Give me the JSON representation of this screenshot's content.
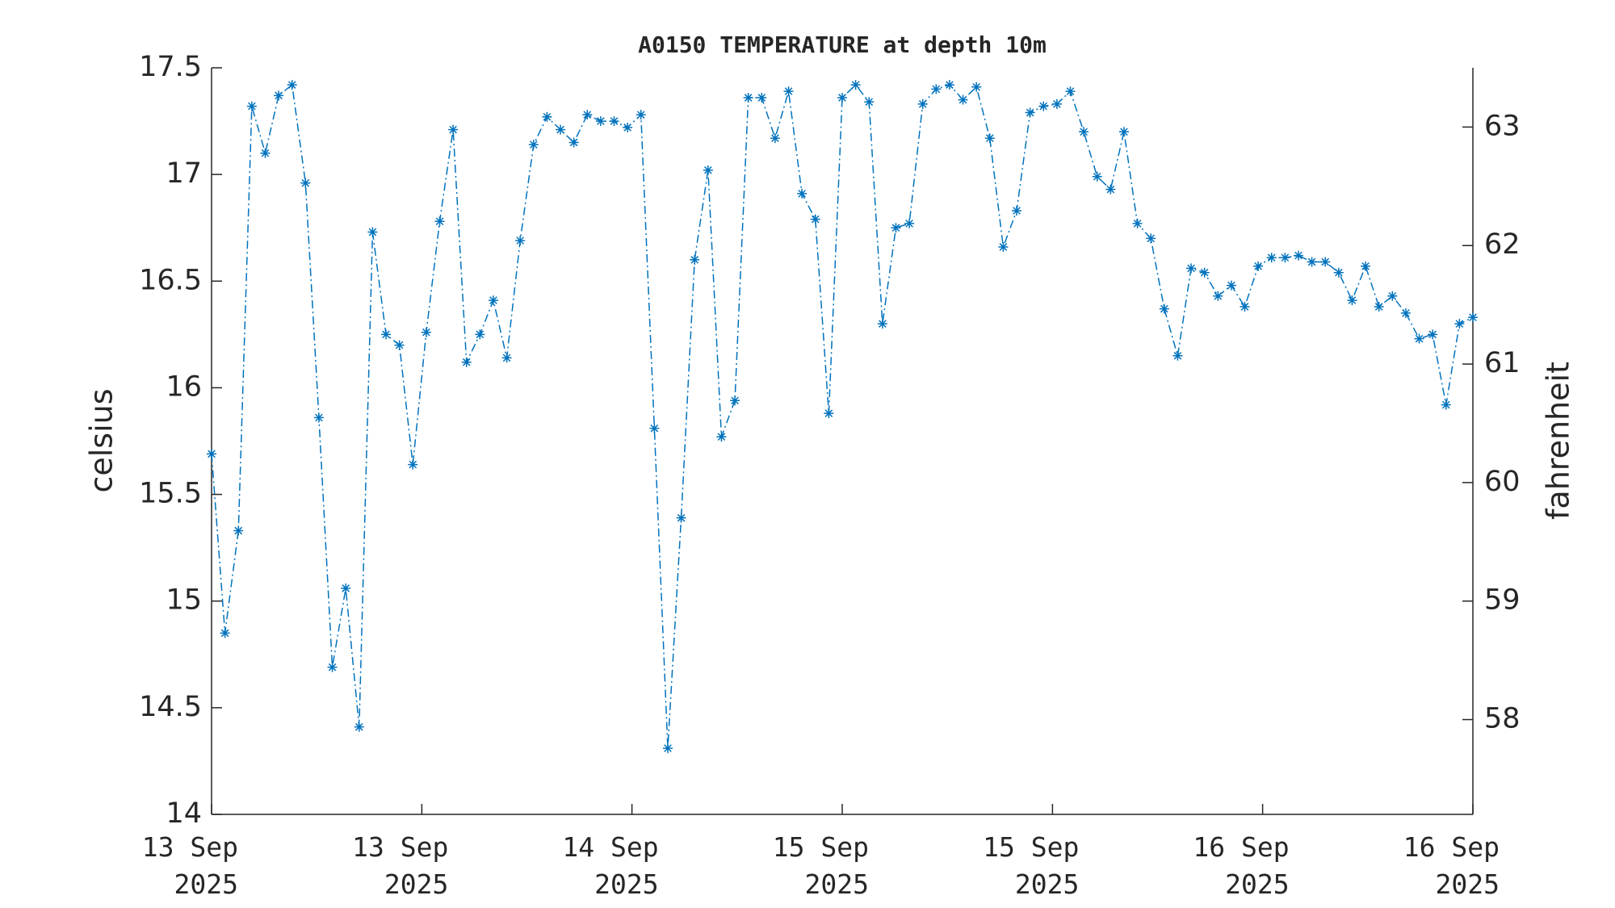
{
  "chart_data": {
    "type": "line",
    "title": "A0150 TEMPERATURE at depth 10m",
    "ylabel": "celsius",
    "y2label": "fahrenheit",
    "x": [
      0,
      1,
      2,
      3,
      4,
      5,
      6,
      7,
      8,
      9,
      10,
      11,
      12,
      13,
      14,
      15,
      16,
      17,
      18,
      19,
      20,
      21,
      22,
      23,
      24,
      25,
      26,
      27,
      28,
      29,
      30,
      31,
      32,
      33,
      34,
      35,
      36,
      37,
      38,
      39,
      40,
      41,
      42,
      43,
      44,
      45,
      46,
      47,
      48,
      49,
      50,
      51,
      52,
      53,
      54,
      55,
      56,
      57,
      58,
      59,
      60,
      61,
      62,
      63,
      64,
      65,
      66,
      67,
      68,
      69,
      70,
      71,
      72,
      73,
      74,
      75,
      76,
      77,
      78,
      79,
      80,
      81,
      82,
      83,
      84,
      85,
      86,
      87,
      88,
      89,
      90,
      91,
      92,
      93,
      94
    ],
    "series": [
      {
        "name": "temperature",
        "color": "#0072bd",
        "values": [
          15.69,
          14.85,
          15.33,
          17.32,
          17.1,
          17.37,
          17.42,
          16.96,
          15.86,
          14.69,
          15.06,
          14.41,
          16.73,
          16.25,
          16.2,
          15.64,
          16.26,
          16.78,
          17.21,
          16.12,
          16.25,
          16.41,
          16.14,
          16.69,
          17.14,
          17.27,
          17.21,
          17.15,
          17.28,
          17.25,
          17.25,
          17.22,
          17.28,
          15.81,
          14.31,
          15.39,
          16.6,
          17.02,
          15.77,
          15.94,
          17.36,
          17.36,
          17.17,
          17.39,
          16.91,
          16.79,
          15.88,
          17.36,
          17.42,
          17.34,
          16.3,
          16.75,
          16.77,
          17.33,
          17.4,
          17.42,
          17.35,
          17.41,
          17.17,
          16.66,
          16.83,
          17.29,
          17.32,
          17.33,
          17.39,
          17.2,
          16.99,
          16.93,
          17.2,
          16.77,
          16.7,
          16.37,
          16.15,
          16.56,
          16.54,
          16.43,
          16.48,
          16.38,
          16.57,
          16.61,
          16.61,
          16.62,
          16.59,
          16.59,
          16.54,
          16.41,
          16.57,
          16.38,
          16.43,
          16.35,
          16.23,
          16.25,
          15.92,
          16.3,
          16.33
        ]
      }
    ],
    "xlim": [
      0,
      94
    ],
    "xticks": [
      {
        "value": 0,
        "label": "13 Sep\n2025"
      },
      {
        "value": 15.67,
        "label": "13 Sep\n2025"
      },
      {
        "value": 31.33,
        "label": "14 Sep\n2025"
      },
      {
        "value": 47,
        "label": "15 Sep\n2025"
      },
      {
        "value": 62.67,
        "label": "15 Sep\n2025"
      },
      {
        "value": 78.33,
        "label": "16 Sep\n2025"
      },
      {
        "value": 94,
        "label": "16 Sep\n2025"
      }
    ],
    "ylim": [
      14,
      17.5
    ],
    "yticks": [
      14,
      14.5,
      15,
      15.5,
      16,
      16.5,
      17,
      17.5
    ],
    "y2lim": [
      57.2,
      63.5
    ],
    "y2ticks": [
      58,
      59,
      60,
      61,
      62,
      63
    ]
  }
}
